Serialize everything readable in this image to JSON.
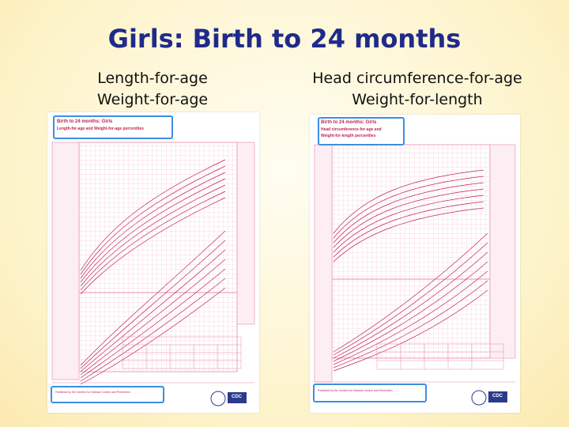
{
  "slide": {
    "title": "Girls: Birth to 24 months",
    "left_subtitle": [
      "Length-for-age",
      "Weight-for-age"
    ],
    "right_subtitle": [
      "Head circumference-for-age",
      "Weight-for-length"
    ]
  },
  "left_chart": {
    "caption_line1": "Birth to 24 months: Girls",
    "caption_line2": "Length-for-age and Weight-for-age percentiles",
    "footer": "Published by the Centers for Disease Control and Prevention",
    "logo": "CDC"
  },
  "right_chart": {
    "caption_line1": "Birth to 24 months: Girls",
    "caption_line2": "Head circumference-for-age and",
    "caption_line3": "Weight-for-length percentiles",
    "footer": "Published by the Centers for Disease Control and Prevention",
    "logo": "CDC"
  },
  "colors": {
    "title": "#1f2a8a",
    "grid_pink": "#e88aa8",
    "curve": "#c0245a",
    "highlight": "#3c8fe0"
  }
}
